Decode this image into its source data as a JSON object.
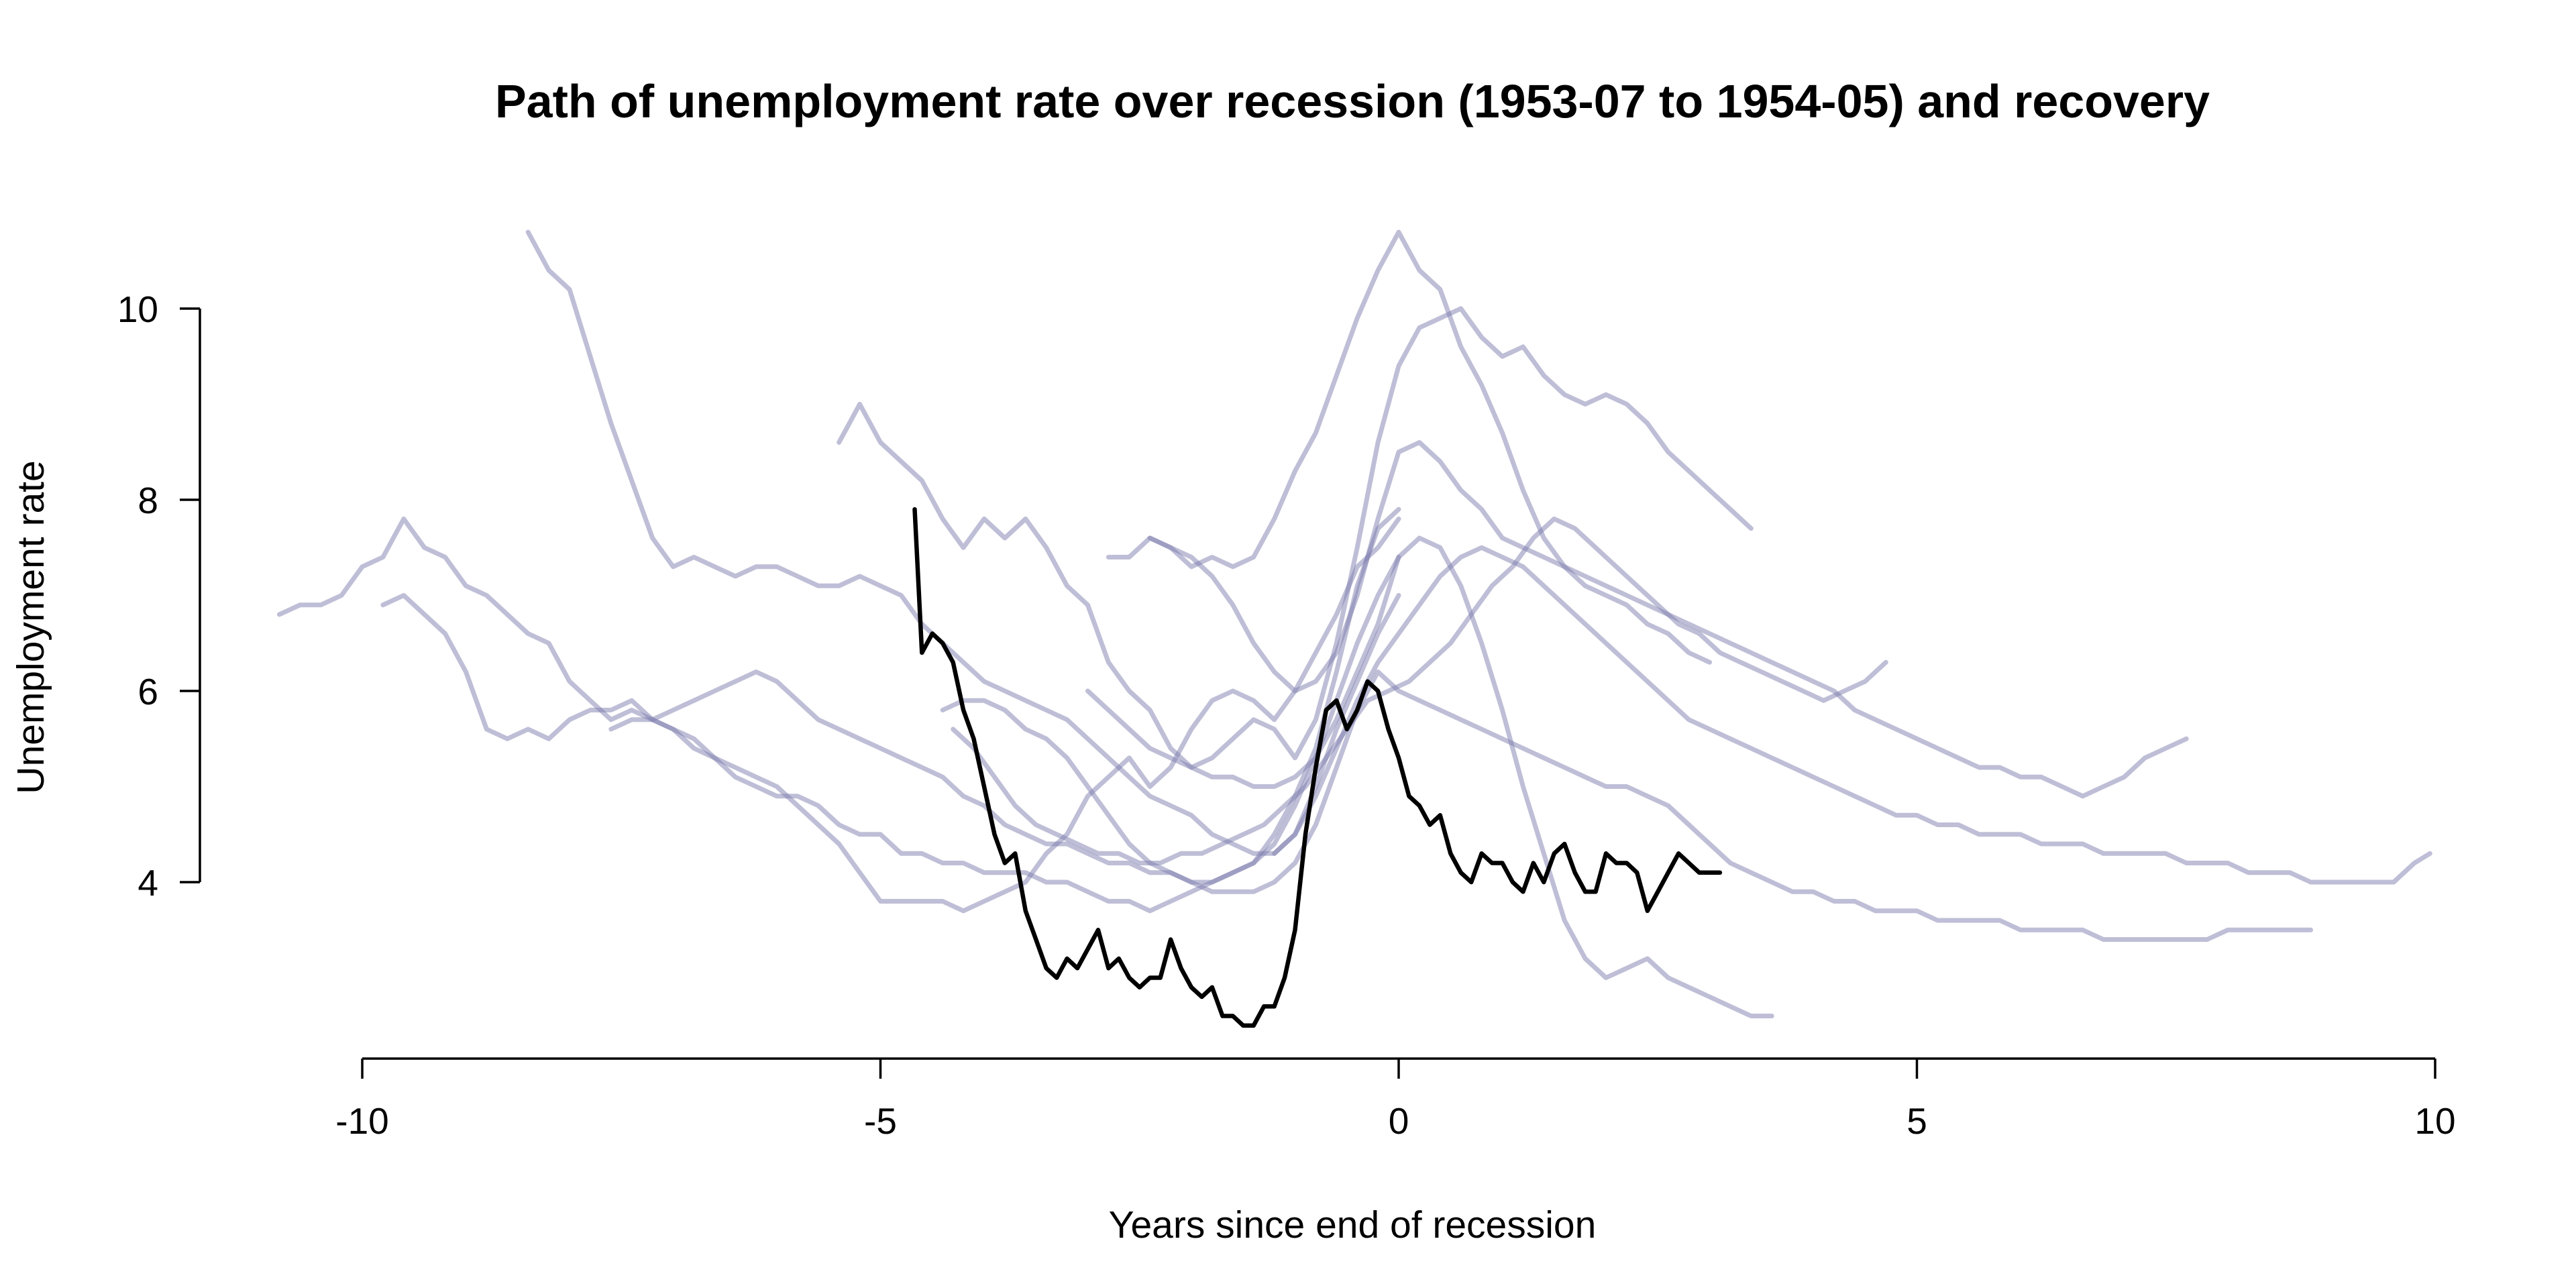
{
  "chart_data": {
    "type": "line",
    "title": "Path of unemployment rate over recession (1953-07 to 1954-05) and recovery",
    "xlabel": "Years since end of recession",
    "ylabel": "Unemployment rate",
    "xlim": [
      -10,
      10
    ],
    "ylim": [
      2.5,
      10.8
    ],
    "x_ticks": [
      -10,
      -5,
      0,
      5,
      10
    ],
    "x_tick_labels": [
      "-10",
      "-5",
      "0",
      "5",
      "10"
    ],
    "y_ticks": [
      4,
      6,
      8,
      10
    ],
    "y_tick_labels": [
      "4",
      "6",
      "8",
      "10"
    ],
    "grid": false,
    "legend": "none",
    "colors": {
      "highlight": "#000000",
      "other": "#7d7daf"
    },
    "highlighted_series": {
      "x": [
        -4.67,
        -4.6,
        -4.5,
        -4.4,
        -4.3,
        -4.2,
        -4.1,
        -4.0,
        -3.9,
        -3.8,
        -3.7,
        -3.6,
        -3.5,
        -3.4,
        -3.3,
        -3.2,
        -3.1,
        -3.0,
        -2.9,
        -2.8,
        -2.7,
        -2.6,
        -2.5,
        -2.4,
        -2.3,
        -2.2,
        -2.1,
        -2.0,
        -1.9,
        -1.8,
        -1.7,
        -1.6,
        -1.5,
        -1.4,
        -1.3,
        -1.2,
        -1.1,
        -1.0,
        -0.9,
        -0.8,
        -0.7,
        -0.6,
        -0.5,
        -0.4,
        -0.3,
        -0.2,
        -0.1,
        0.0,
        0.1,
        0.2,
        0.3,
        0.4,
        0.5,
        0.6,
        0.7,
        0.8,
        0.9,
        1.0,
        1.1,
        1.2,
        1.3,
        1.4,
        1.5,
        1.6,
        1.7,
        1.8,
        1.9,
        2.0,
        2.1,
        2.2,
        2.3,
        2.4,
        2.5,
        2.6,
        2.7,
        2.8,
        2.9,
        3.0,
        3.1
      ],
      "y": [
        7.9,
        6.4,
        6.6,
        6.5,
        6.3,
        5.8,
        5.5,
        5.0,
        4.5,
        4.2,
        4.3,
        3.7,
        3.4,
        3.1,
        3.0,
        3.2,
        3.1,
        3.3,
        3.5,
        3.1,
        3.2,
        3.0,
        2.9,
        3.0,
        3.0,
        3.4,
        3.1,
        2.9,
        2.8,
        2.9,
        2.6,
        2.6,
        2.5,
        2.5,
        2.7,
        2.7,
        3.0,
        3.5,
        4.5,
        5.2,
        5.8,
        5.9,
        5.6,
        5.8,
        6.1,
        6.0,
        5.6,
        5.3,
        4.9,
        4.8,
        4.6,
        4.7,
        4.3,
        4.1,
        4.0,
        4.3,
        4.2,
        4.2,
        4.0,
        3.9,
        4.2,
        4.0,
        4.3,
        4.4,
        4.1,
        3.9,
        3.9,
        4.3,
        4.2,
        4.2,
        4.1,
        3.7,
        3.9,
        4.1,
        4.3,
        4.2,
        4.1,
        4.1,
        4.1
      ]
    },
    "series": [
      {
        "x": [
          -10.8,
          -10.6,
          -10.4,
          -10.2,
          -10.0,
          -9.8,
          -9.6,
          -9.4,
          -9.2,
          -9.0,
          -8.8,
          -8.6,
          -8.4,
          -8.2,
          -8.0,
          -7.8,
          -7.6,
          -7.4,
          -7.2,
          -7.0,
          -6.8,
          -6.6,
          -6.4,
          -6.2,
          -6.0,
          -5.8,
          -5.6,
          -5.4,
          -5.2,
          -5.0,
          -4.8,
          -4.6,
          -4.4,
          -4.2,
          -4.0,
          -3.8,
          -3.6,
          -3.4,
          -3.2,
          -3.0,
          -2.8,
          -2.6,
          -2.4,
          -2.2,
          -2.0,
          -1.8,
          -1.6,
          -1.4,
          -1.2,
          -1.0,
          -0.8,
          -0.6,
          -0.4,
          -0.2,
          0.0
        ],
        "y": [
          6.8,
          6.9,
          6.9,
          7.0,
          7.3,
          7.4,
          7.8,
          7.5,
          7.4,
          7.1,
          7.0,
          6.8,
          6.6,
          6.5,
          6.1,
          5.9,
          5.7,
          5.8,
          5.7,
          5.6,
          5.4,
          5.3,
          5.2,
          5.1,
          5.0,
          4.8,
          4.6,
          4.4,
          4.1,
          3.8,
          3.8,
          3.8,
          3.8,
          3.7,
          3.8,
          3.9,
          4.0,
          4.3,
          4.5,
          4.9,
          5.1,
          5.3,
          5.0,
          5.2,
          5.6,
          5.9,
          6.0,
          5.9,
          5.7,
          6.0,
          6.4,
          6.8,
          7.3,
          7.5,
          7.8
        ]
      },
      {
        "x": [
          -9.8,
          -9.6,
          -9.4,
          -9.2,
          -9.0,
          -8.8,
          -8.6,
          -8.4,
          -8.2,
          -8.0,
          -7.8,
          -7.6,
          -7.4,
          -7.2,
          -7.0,
          -6.8,
          -6.6,
          -6.4,
          -6.2,
          -6.0,
          -5.8,
          -5.6,
          -5.4,
          -5.2,
          -5.0,
          -4.8,
          -4.6,
          -4.4,
          -4.2,
          -4.0,
          -3.8,
          -3.6,
          -3.4,
          -3.2,
          -3.0,
          -2.8,
          -2.6,
          -2.4,
          -2.2,
          -2.0,
          -1.8,
          -1.6,
          -1.4,
          -1.2,
          -1.0,
          -0.8,
          -0.6,
          -0.4,
          -0.2,
          0.0
        ],
        "y": [
          6.9,
          7.0,
          6.8,
          6.6,
          6.2,
          5.6,
          5.5,
          5.6,
          5.5,
          5.7,
          5.8,
          5.8,
          5.9,
          5.7,
          5.6,
          5.5,
          5.3,
          5.1,
          5.0,
          4.9,
          4.9,
          4.8,
          4.6,
          4.5,
          4.5,
          4.3,
          4.3,
          4.2,
          4.2,
          4.1,
          4.1,
          4.1,
          4.0,
          4.0,
          3.9,
          3.8,
          3.8,
          3.7,
          3.8,
          3.9,
          4.0,
          4.1,
          4.2,
          4.5,
          4.9,
          5.4,
          6.2,
          7.1,
          7.7,
          7.9
        ]
      },
      {
        "x": [
          -8.4,
          -8.2,
          -8.0,
          -7.8,
          -7.6,
          -7.4,
          -7.2,
          -7.0,
          -6.8,
          -6.6,
          -6.4,
          -6.2,
          -6.0,
          -5.8,
          -5.6,
          -5.4,
          -5.2,
          -5.0,
          -4.8,
          -4.6,
          -4.4,
          -4.2,
          -4.0,
          -3.8,
          -3.6,
          -3.4,
          -3.2,
          -3.0,
          -2.8,
          -2.6,
          -2.4,
          -2.2,
          -2.0,
          -1.8,
          -1.6,
          -1.4,
          -1.2,
          -1.0,
          -0.8,
          -0.6,
          -0.4,
          -0.2,
          0.0
        ],
        "y": [
          10.8,
          10.4,
          10.2,
          9.5,
          8.8,
          8.2,
          7.6,
          7.3,
          7.4,
          7.3,
          7.2,
          7.3,
          7.3,
          7.2,
          7.1,
          7.1,
          7.2,
          7.1,
          7.0,
          6.7,
          6.5,
          6.3,
          6.1,
          6.0,
          5.9,
          5.8,
          5.7,
          5.5,
          5.3,
          5.1,
          4.9,
          4.8,
          4.7,
          4.5,
          4.4,
          4.3,
          4.3,
          4.5,
          5.0,
          5.6,
          6.1,
          6.6,
          7.0
        ]
      },
      {
        "x": [
          -7.6,
          -7.4,
          -7.2,
          -7.0,
          -6.8,
          -6.6,
          -6.4,
          -6.2,
          -6.0,
          -5.8,
          -5.6,
          -5.4,
          -5.2,
          -5.0,
          -4.8,
          -4.6,
          -4.4,
          -4.2,
          -4.0,
          -3.8,
          -3.6,
          -3.4,
          -3.2,
          -3.0,
          -2.8,
          -2.6,
          -2.4,
          -2.2,
          -2.0,
          -1.8,
          -1.6,
          -1.4,
          -1.2,
          -1.0,
          -0.8,
          -0.6,
          -0.4,
          -0.2,
          0.0
        ],
        "y": [
          5.6,
          5.7,
          5.7,
          5.8,
          5.9,
          6.0,
          6.1,
          6.2,
          6.1,
          5.9,
          5.7,
          5.6,
          5.5,
          5.4,
          5.3,
          5.2,
          5.1,
          4.9,
          4.8,
          4.6,
          4.5,
          4.4,
          4.4,
          4.3,
          4.2,
          4.2,
          4.1,
          4.1,
          4.0,
          4.0,
          4.1,
          4.2,
          4.4,
          4.8,
          5.3,
          5.9,
          6.5,
          7.0,
          7.4
        ]
      },
      {
        "x": [
          -5.4,
          -5.2,
          -5.0,
          -4.8,
          -4.6,
          -4.4,
          -4.2,
          -4.0,
          -3.8,
          -3.6,
          -3.4,
          -3.2,
          -3.0,
          -2.8,
          -2.6,
          -2.4,
          -2.2,
          -2.0,
          -1.8,
          -1.6,
          -1.4,
          -1.2,
          -1.0,
          -0.8,
          -0.6,
          -0.4,
          -0.2,
          0.0,
          0.2,
          0.4,
          0.6,
          0.8,
          1.0,
          1.2,
          1.4,
          1.6,
          1.8,
          2.0,
          2.2,
          2.4,
          2.6,
          2.8,
          3.0,
          3.2,
          3.4
        ],
        "y": [
          8.6,
          9.0,
          8.6,
          8.4,
          8.2,
          7.8,
          7.5,
          7.8,
          7.6,
          7.8,
          7.5,
          7.1,
          6.9,
          6.3,
          6.0,
          5.8,
          5.4,
          5.2,
          5.3,
          5.5,
          5.7,
          5.6,
          5.3,
          5.7,
          6.5,
          7.5,
          8.6,
          9.4,
          9.8,
          9.9,
          10.0,
          9.7,
          9.5,
          9.6,
          9.3,
          9.1,
          9.0,
          9.1,
          9.0,
          8.8,
          8.5,
          8.3,
          8.1,
          7.9,
          7.7
        ]
      },
      {
        "x": [
          -2.8,
          -2.6,
          -2.4,
          -2.2,
          -2.0,
          -1.8,
          -1.6,
          -1.4,
          -1.2,
          -1.0,
          -0.8,
          -0.6,
          -0.4,
          -0.2,
          0.0,
          0.2,
          0.4,
          0.6,
          0.8,
          1.0,
          1.2,
          1.4,
          1.6,
          1.8,
          2.0,
          2.2,
          2.4,
          2.6,
          2.8,
          3.0
        ],
        "y": [
          7.4,
          7.4,
          7.6,
          7.5,
          7.3,
          7.4,
          7.3,
          7.4,
          7.8,
          8.3,
          8.7,
          9.3,
          9.9,
          10.4,
          10.8,
          10.4,
          10.2,
          9.6,
          9.2,
          8.7,
          8.1,
          7.6,
          7.3,
          7.1,
          7.0,
          6.9,
          6.7,
          6.6,
          6.4,
          6.3
        ]
      },
      {
        "x": [
          -2.4,
          -2.2,
          -2.0,
          -1.8,
          -1.6,
          -1.4,
          -1.2,
          -1.0,
          -0.8,
          -0.6,
          -0.4,
          -0.2,
          0.0,
          0.2,
          0.4,
          0.6,
          0.8,
          1.0,
          1.2,
          1.4,
          1.6,
          1.8,
          2.0,
          2.2,
          2.4,
          2.6,
          2.8,
          3.0,
          3.2,
          3.4,
          3.6,
          3.8,
          4.0,
          4.2,
          4.4,
          4.6,
          4.8,
          5.0,
          5.2,
          5.4,
          5.6,
          5.8,
          6.0,
          6.2,
          6.4,
          6.6,
          6.8,
          7.0,
          7.2,
          7.4,
          7.6
        ],
        "y": [
          7.6,
          7.5,
          7.4,
          7.2,
          6.9,
          6.5,
          6.2,
          6.0,
          6.1,
          6.4,
          7.0,
          7.8,
          8.5,
          8.6,
          8.4,
          8.1,
          7.9,
          7.6,
          7.5,
          7.4,
          7.3,
          7.2,
          7.1,
          7.0,
          6.9,
          6.8,
          6.7,
          6.6,
          6.5,
          6.4,
          6.3,
          6.2,
          6.1,
          6.0,
          5.8,
          5.7,
          5.6,
          5.5,
          5.4,
          5.3,
          5.2,
          5.2,
          5.1,
          5.1,
          5.0,
          4.9,
          5.0,
          5.1,
          5.3,
          5.4,
          5.5
        ]
      },
      {
        "x": [
          -3.0,
          -2.8,
          -2.6,
          -2.4,
          -2.2,
          -2.0,
          -1.8,
          -1.6,
          -1.4,
          -1.2,
          -1.0,
          -0.8,
          -0.6,
          -0.4,
          -0.2,
          0.0,
          0.2,
          0.4,
          0.6,
          0.8,
          1.0,
          1.2,
          1.4,
          1.6,
          1.8,
          2.0,
          2.2,
          2.4,
          2.6,
          2.8,
          3.0,
          3.2,
          3.4,
          3.6
        ],
        "y": [
          6.0,
          5.8,
          5.6,
          5.4,
          5.3,
          5.2,
          5.1,
          5.1,
          5.0,
          5.0,
          5.1,
          5.3,
          5.7,
          6.2,
          6.7,
          7.4,
          7.6,
          7.5,
          7.1,
          6.5,
          5.8,
          5.0,
          4.3,
          3.6,
          3.2,
          3.0,
          3.1,
          3.2,
          3.0,
          2.9,
          2.8,
          2.7,
          2.6,
          2.6
        ]
      },
      {
        "x": [
          -4.4,
          -4.2,
          -4.0,
          -3.8,
          -3.6,
          -3.4,
          -3.2,
          -3.0,
          -2.8,
          -2.6,
          -2.4,
          -2.2,
          -2.0,
          -1.8,
          -1.6,
          -1.4,
          -1.2,
          -1.0,
          -0.8,
          -0.6,
          -0.4,
          -0.2,
          0.0,
          0.2,
          0.4,
          0.6,
          0.8,
          1.0,
          1.2,
          1.4,
          1.6,
          1.8,
          2.0,
          2.2,
          2.4,
          2.6,
          2.8,
          3.0,
          3.2,
          3.4,
          3.6,
          3.8,
          4.0,
          4.2,
          4.4,
          4.6,
          4.8,
          5.0,
          5.2,
          5.4,
          5.6,
          5.8,
          6.0,
          6.2,
          6.4,
          6.6,
          6.8,
          7.0,
          7.2,
          7.4,
          7.6,
          7.8,
          8.0,
          8.2,
          8.4,
          8.6,
          8.8
        ],
        "y": [
          5.8,
          5.9,
          5.9,
          5.8,
          5.6,
          5.5,
          5.3,
          5.0,
          4.7,
          4.4,
          4.2,
          4.1,
          4.0,
          3.9,
          3.9,
          3.9,
          4.0,
          4.2,
          4.6,
          5.2,
          5.8,
          6.2,
          6.0,
          5.9,
          5.8,
          5.7,
          5.6,
          5.5,
          5.4,
          5.3,
          5.2,
          5.1,
          5.0,
          5.0,
          4.9,
          4.8,
          4.6,
          4.4,
          4.2,
          4.1,
          4.0,
          3.9,
          3.9,
          3.8,
          3.8,
          3.7,
          3.7,
          3.7,
          3.6,
          3.6,
          3.6,
          3.6,
          3.5,
          3.5,
          3.5,
          3.5,
          3.4,
          3.4,
          3.4,
          3.4,
          3.4,
          3.4,
          3.5,
          3.5,
          3.5,
          3.5,
          3.5
        ]
      },
      {
        "x": [
          -4.3,
          -4.1,
          -3.9,
          -3.7,
          -3.5,
          -3.3,
          -3.1,
          -2.9,
          -2.7,
          -2.5,
          -2.3,
          -2.1,
          -1.9,
          -1.7,
          -1.5,
          -1.3,
          -1.1,
          -0.9,
          -0.7,
          -0.5,
          -0.3,
          -0.1,
          0.1,
          0.3,
          0.5,
          0.7,
          0.9,
          1.1,
          1.3,
          1.5,
          1.7,
          1.9,
          2.1,
          2.3,
          2.5,
          2.7,
          2.9,
          3.1,
          3.3,
          3.5,
          3.7,
          3.9,
          4.1,
          4.3,
          4.5,
          4.7
        ],
        "y": [
          5.6,
          5.4,
          5.1,
          4.8,
          4.6,
          4.5,
          4.4,
          4.3,
          4.3,
          4.2,
          4.2,
          4.3,
          4.3,
          4.4,
          4.5,
          4.6,
          4.8,
          5.0,
          5.3,
          5.6,
          5.9,
          6.0,
          6.1,
          6.3,
          6.5,
          6.8,
          7.1,
          7.3,
          7.6,
          7.8,
          7.7,
          7.5,
          7.3,
          7.1,
          6.9,
          6.7,
          6.6,
          6.4,
          6.3,
          6.2,
          6.1,
          6.0,
          5.9,
          6.0,
          6.1,
          6.3
        ]
      },
      {
        "x": [
          -1.2,
          -1.0,
          -0.8,
          -0.6,
          -0.4,
          -0.2,
          0.0,
          0.2,
          0.4,
          0.6,
          0.8,
          1.0,
          1.2,
          1.4,
          1.6,
          1.8,
          2.0,
          2.2,
          2.4,
          2.6,
          2.8,
          3.0,
          3.2,
          3.4,
          3.6,
          3.8,
          4.0,
          4.2,
          4.4,
          4.6,
          4.8,
          5.0,
          5.2,
          5.4,
          5.6,
          5.8,
          6.0,
          6.2,
          6.4,
          6.6,
          6.8,
          7.0,
          7.2,
          7.4,
          7.6,
          7.8,
          8.0,
          8.2,
          8.4,
          8.6,
          8.8,
          9.0,
          9.2,
          9.4,
          9.6,
          9.8,
          9.95
        ],
        "y": [
          4.3,
          4.5,
          4.9,
          5.4,
          5.9,
          6.3,
          6.6,
          6.9,
          7.2,
          7.4,
          7.5,
          7.4,
          7.3,
          7.1,
          6.9,
          6.7,
          6.5,
          6.3,
          6.1,
          5.9,
          5.7,
          5.6,
          5.5,
          5.4,
          5.3,
          5.2,
          5.1,
          5.0,
          4.9,
          4.8,
          4.7,
          4.7,
          4.6,
          4.6,
          4.5,
          4.5,
          4.5,
          4.4,
          4.4,
          4.4,
          4.3,
          4.3,
          4.3,
          4.3,
          4.2,
          4.2,
          4.2,
          4.1,
          4.1,
          4.1,
          4.0,
          4.0,
          4.0,
          4.0,
          4.0,
          4.2,
          4.3
        ]
      }
    ]
  }
}
